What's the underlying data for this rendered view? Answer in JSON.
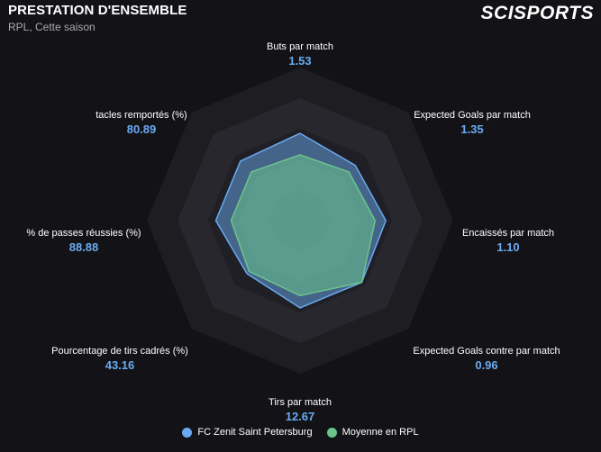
{
  "header": {
    "title": "PRESTATION D'ENSEMBLE",
    "subtitle": "RPL, Cette saison",
    "logo_text": "SCISPORTS"
  },
  "colors": {
    "background": "#131317",
    "team": "#6aaaf0",
    "league": "#6cc48c",
    "value_text": "#6aaaf0"
  },
  "chart_data": {
    "type": "radar",
    "title": "PRESTATION D'ENSEMBLE",
    "axes": [
      {
        "label": "Buts par match",
        "value_label": "1.53"
      },
      {
        "label": "Expected Goals par match",
        "value_label": "1.35"
      },
      {
        "label": "Encaissés par match",
        "value_label": "1.10"
      },
      {
        "label": "Expected Goals contre par match",
        "value_label": "0.96"
      },
      {
        "label": "Tirs par match",
        "value_label": "12.67"
      },
      {
        "label": "Pourcentage de tirs cadrés (%)",
        "value_label": "43.16"
      },
      {
        "label": "% de passes réussies (%)",
        "value_label": "88.88"
      },
      {
        "label": "tacles remportés (%)",
        "value_label": "80.89"
      }
    ],
    "scale": [
      0,
      1
    ],
    "rings": 5,
    "series": [
      {
        "name": "FC Zenit Saint Petersburg",
        "color": "#6aaaf0",
        "values": [
          0.57,
          0.51,
          0.56,
          0.57,
          0.57,
          0.49,
          0.55,
          0.55
        ]
      },
      {
        "name": "Moyenne en RPL",
        "color": "#6cc48c",
        "values": [
          0.43,
          0.45,
          0.49,
          0.57,
          0.49,
          0.47,
          0.45,
          0.45
        ]
      }
    ]
  },
  "legend": {
    "items": [
      {
        "label": "FC Zenit Saint Petersburg",
        "color": "#6aaaf0"
      },
      {
        "label": "Moyenne en RPL",
        "color": "#6cc48c"
      }
    ]
  }
}
